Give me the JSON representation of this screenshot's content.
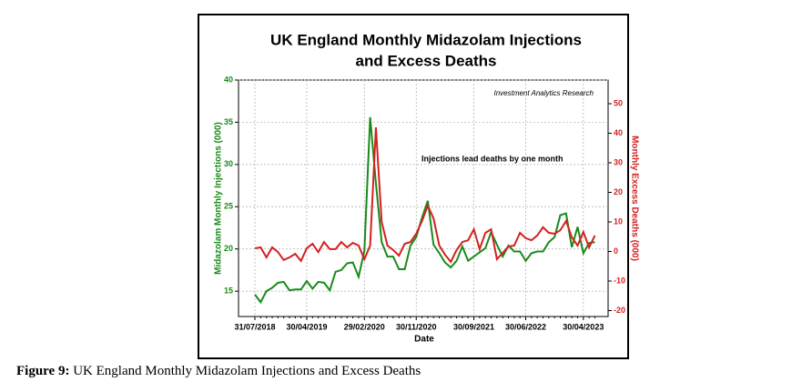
{
  "chart_data": {
    "type": "line",
    "title": [
      "UK England Monthly Midazolam Injections",
      "and Excess Deaths"
    ],
    "source_note": "Investment Analytics Research",
    "annotation": "Injections lead deaths by one month",
    "x_label": "Date",
    "y_label": "Midazolam Monthly Injections (000)",
    "y2_label": "Monthly Excess Deaths (000)",
    "categories": [
      "31/07/2018",
      null,
      null,
      null,
      null,
      null,
      null,
      null,
      null,
      "30/04/2019",
      null,
      null,
      null,
      null,
      null,
      null,
      null,
      null,
      null,
      "29/02/2020",
      null,
      null,
      null,
      null,
      null,
      null,
      null,
      null,
      "30/11/2020",
      null,
      null,
      null,
      null,
      null,
      null,
      null,
      null,
      null,
      "30/09/2021",
      null,
      null,
      null,
      null,
      null,
      null,
      null,
      null,
      "30/06/2022",
      null,
      null,
      null,
      null,
      null,
      null,
      null,
      null,
      null,
      "30/04/2023",
      null,
      null
    ],
    "series": [
      {
        "color": "#1a8a1a",
        "axis": "y",
        "values": [
          14.6,
          13.7,
          15.0,
          15.4,
          16.0,
          16.1,
          15.1,
          15.2,
          15.2,
          16.2,
          15.3,
          16.1,
          16.0,
          15.1,
          17.3,
          17.5,
          18.3,
          18.4,
          16.7,
          19.8,
          35.6,
          27.8,
          20.8,
          19.1,
          19.1,
          17.6,
          17.6,
          20.4,
          21.4,
          23.7,
          25.7,
          20.5,
          19.5,
          18.4,
          17.8,
          18.6,
          20.3,
          18.6,
          19.1,
          19.6,
          20.1,
          22.0,
          20.5,
          19.1,
          20.4,
          19.7,
          19.7,
          18.6,
          19.5,
          19.7,
          19.7,
          20.8,
          21.4,
          24.0,
          24.2,
          20.2,
          22.6,
          19.5,
          20.7,
          20.8
        ]
      },
      {
        "color": "#d42020",
        "axis": "y2",
        "values": [
          1.1,
          1.4,
          -2.0,
          1.4,
          -0.2,
          -2.9,
          -2.0,
          -0.8,
          -3.2,
          1.1,
          2.6,
          -0.2,
          3.2,
          0.8,
          0.8,
          3.2,
          1.4,
          2.9,
          2.0,
          -2.6,
          2.0,
          42.0,
          10.0,
          2.0,
          0.5,
          -1.4,
          2.6,
          3.2,
          6.0,
          10.3,
          15.5,
          11.2,
          2.0,
          -1.1,
          -3.5,
          0.5,
          3.2,
          3.8,
          7.5,
          0.8,
          6.3,
          7.5,
          -2.6,
          -0.5,
          1.7,
          2.0,
          6.3,
          4.5,
          3.8,
          5.4,
          8.2,
          6.3,
          6.0,
          7.2,
          10.3,
          4.8,
          2.0,
          6.6,
          1.4,
          5.4
        ]
      }
    ],
    "ylim": [
      12,
      40
    ],
    "yticks": [
      15,
      20,
      25,
      30,
      35,
      40
    ],
    "y2lim": [
      -22,
      58
    ],
    "y2ticks": [
      -20,
      -10,
      0,
      10,
      20,
      30,
      40,
      50
    ],
    "grid": true
  },
  "figure": {
    "label": "Figure 9:",
    "caption": "UK England Monthly Midazolam Injections and Excess Deaths"
  }
}
